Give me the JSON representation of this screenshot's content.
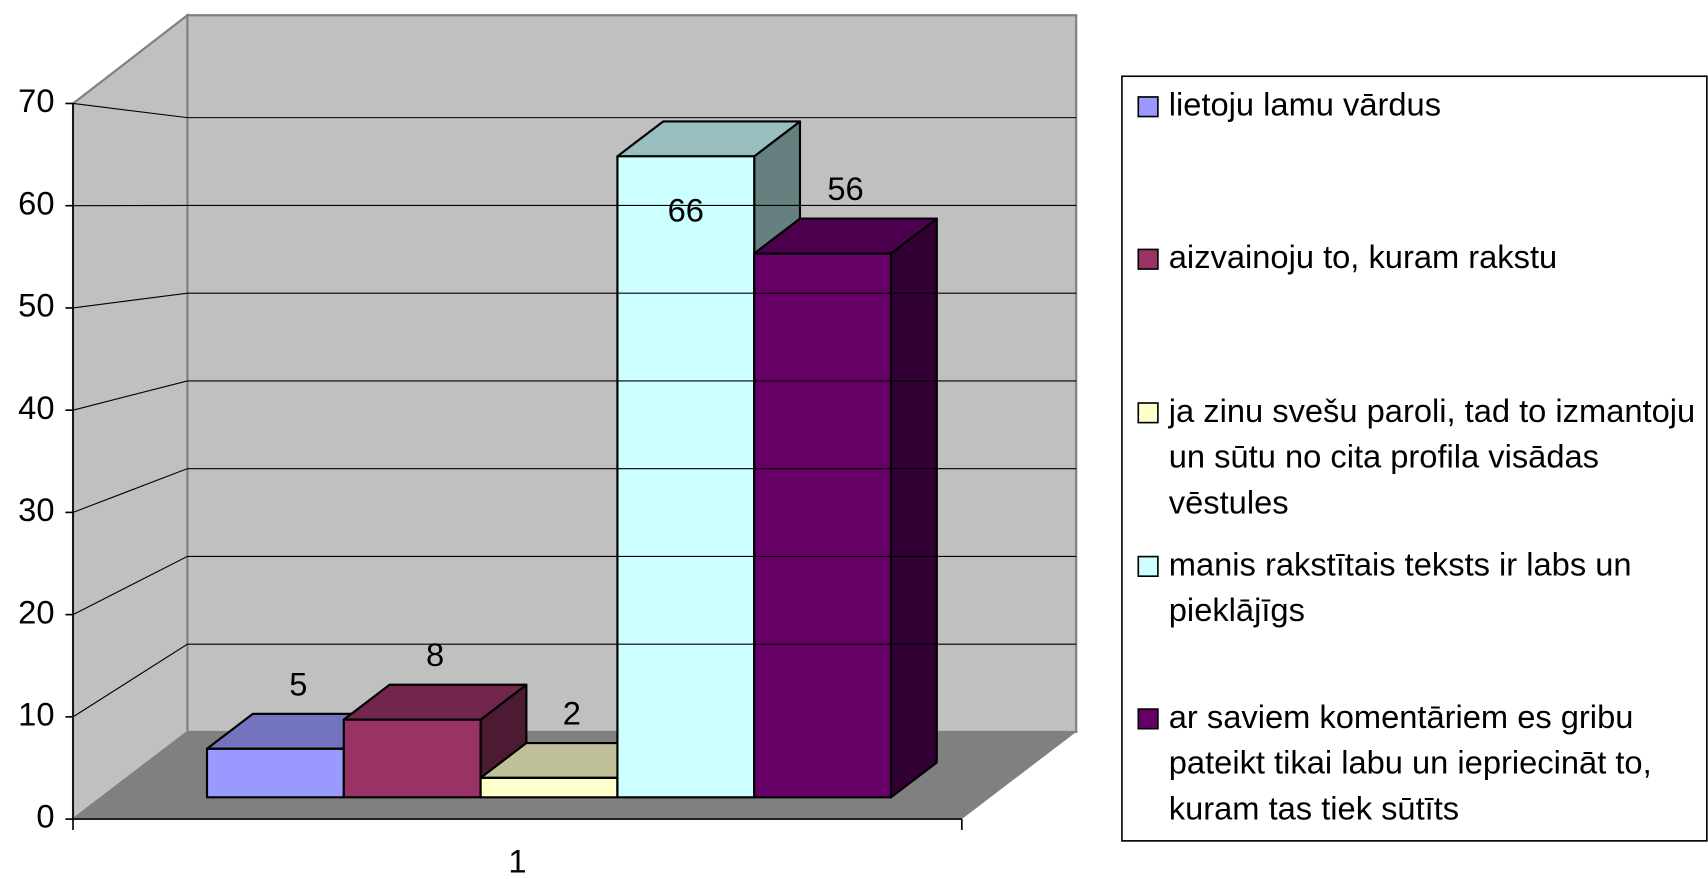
{
  "chart_data": {
    "type": "bar3d",
    "categories": [
      "1"
    ],
    "series": [
      {
        "name": "lietoju lamu vārdus",
        "color": "#9999ff",
        "values": [
          5
        ]
      },
      {
        "name": "aizvainoju to, kuram rakstu",
        "color": "#993366",
        "values": [
          8
        ]
      },
      {
        "name": "ja zinu svešu paroli, tad to izmantoju un sūtu no cita profila visādas vēstules",
        "color": "#ffffcc",
        "values": [
          2
        ]
      },
      {
        "name": "manis rakstītais teksts ir labs un pieklājīgs",
        "color": "#ccffff",
        "values": [
          66
        ]
      },
      {
        "name": "ar saviem komentāriem es gribu pateikt tikai labu un iepriecināt to, kuram tas tiek sūtīts",
        "color": "#660066",
        "values": [
          56
        ]
      }
    ],
    "ylim": [
      0,
      70
    ],
    "yticks": [
      0,
      10,
      20,
      30,
      40,
      50,
      60,
      70
    ],
    "grid": true,
    "legend": "right"
  }
}
